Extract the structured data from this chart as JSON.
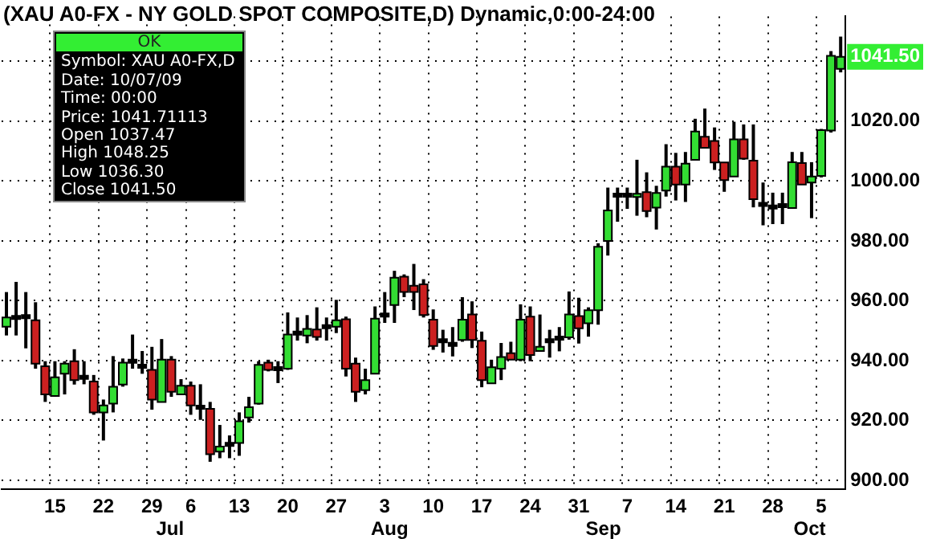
{
  "chart_data": {
    "type": "candlestick",
    "title": "(XAU A0-FX - NY GOLD SPOT COMPOSITE,D) Dynamic,0:00-24:00",
    "categories": [
      null,
      null,
      null,
      null,
      null,
      "15",
      null,
      null,
      null,
      null,
      "22",
      null,
      null,
      null,
      null,
      "29",
      null,
      null,
      null,
      "6",
      null,
      null,
      null,
      null,
      "13",
      null,
      null,
      null,
      null,
      "20",
      null,
      null,
      null,
      null,
      "27",
      null,
      null,
      null,
      null,
      "3",
      null,
      null,
      null,
      null,
      "10",
      null,
      null,
      null,
      null,
      "17",
      null,
      null,
      null,
      null,
      "24",
      null,
      null,
      null,
      null,
      "31",
      null,
      null,
      null,
      null,
      "7",
      null,
      null,
      null,
      null,
      "14",
      null,
      null,
      null,
      null,
      "21",
      null,
      null,
      null,
      null,
      "28",
      null,
      null,
      null,
      null,
      "5",
      null,
      null
    ],
    "ohlc": [
      [
        951.3,
        962.9,
        948.4,
        954.4
      ],
      [
        954.4,
        966.3,
        948.4,
        954.4
      ],
      [
        954.7,
        962.9,
        944.1,
        954.7
      ],
      [
        953.5,
        959.5,
        937.3,
        939.0
      ],
      [
        938.1,
        939.8,
        926.2,
        928.7
      ],
      [
        928.2,
        939.8,
        927.9,
        934.4
      ],
      [
        935.6,
        939.8,
        928.7,
        939.0
      ],
      [
        939.8,
        943.8,
        932.0,
        933.5
      ],
      [
        934.4,
        939.8,
        932.1,
        934.4
      ],
      [
        933.0,
        935.2,
        921.9,
        922.7
      ],
      [
        922.7,
        927.0,
        913.3,
        925.0
      ],
      [
        925.6,
        941.5,
        922.7,
        931.3
      ],
      [
        932.0,
        940.7,
        931.3,
        939.3
      ],
      [
        939.8,
        948.7,
        937.3,
        939.8
      ],
      [
        938.1,
        943.2,
        935.6,
        938.1
      ],
      [
        936.9,
        944.6,
        923.6,
        927.0
      ],
      [
        926.2,
        947.2,
        926.2,
        940.3
      ],
      [
        940.3,
        941.5,
        927.9,
        929.6
      ],
      [
        928.7,
        933.8,
        928.7,
        931.6
      ],
      [
        931.6,
        933.0,
        921.9,
        925.0
      ],
      [
        924.4,
        932.1,
        920.2,
        924.4
      ],
      [
        923.9,
        926.2,
        906.2,
        908.7
      ],
      [
        909.6,
        918.5,
        907.4,
        911.3
      ],
      [
        912.0,
        915.0,
        907.4,
        912.0
      ],
      [
        912.5,
        922.7,
        908.2,
        919.7
      ],
      [
        921.0,
        927.9,
        919.3,
        924.4
      ],
      [
        925.6,
        939.8,
        925.3,
        938.6
      ],
      [
        939.3,
        940.3,
        936.4,
        936.9
      ],
      [
        937.3,
        939.8,
        932.5,
        937.3
      ],
      [
        937.3,
        956.1,
        936.9,
        948.7
      ],
      [
        949.2,
        954.4,
        946.7,
        949.2
      ],
      [
        948.4,
        955.2,
        945.8,
        950.6
      ],
      [
        950.4,
        957.8,
        946.7,
        947.9
      ],
      [
        951.3,
        954.4,
        946.7,
        951.3
      ],
      [
        951.3,
        960.3,
        949.2,
        953.5
      ],
      [
        953.8,
        954.7,
        934.7,
        937.3
      ],
      [
        939.0,
        941.0,
        926.2,
        929.6
      ],
      [
        930.1,
        937.3,
        928.7,
        933.5
      ],
      [
        935.6,
        958.1,
        935.6,
        954.0
      ],
      [
        955.2,
        962.9,
        952.6,
        955.2
      ],
      [
        958.6,
        970.0,
        952.6,
        967.7
      ],
      [
        968.0,
        968.8,
        961.2,
        962.9
      ],
      [
        965.0,
        972.3,
        956.9,
        962.9
      ],
      [
        965.5,
        967.2,
        954.4,
        955.2
      ],
      [
        953.7,
        957.1,
        943.6,
        944.9
      ],
      [
        946.6,
        950.3,
        942.7,
        946.6
      ],
      [
        945.4,
        951.2,
        941.4,
        945.4
      ],
      [
        946.9,
        961.2,
        946.3,
        953.7
      ],
      [
        955.4,
        959.8,
        944.2,
        946.9
      ],
      [
        946.6,
        949.7,
        931.1,
        933.5
      ],
      [
        932.4,
        940.3,
        932.4,
        937.8
      ],
      [
        937.3,
        945.9,
        933.5,
        941.2
      ],
      [
        942.5,
        946.3,
        940.3,
        940.3
      ],
      [
        940.3,
        958.8,
        939.8,
        953.7
      ],
      [
        954.7,
        958.1,
        939.8,
        941.9
      ],
      [
        943.2,
        955.4,
        943.2,
        944.6
      ],
      [
        946.6,
        950.3,
        941.0,
        946.6
      ],
      [
        947.5,
        951.2,
        943.1,
        947.5
      ],
      [
        947.8,
        963.1,
        947.0,
        955.4
      ],
      [
        954.9,
        961.0,
        945.7,
        950.8
      ],
      [
        952.5,
        957.8,
        948.0,
        956.8
      ],
      [
        956.8,
        979.2,
        952.0,
        978.0
      ],
      [
        980.0,
        997.8,
        975.1,
        990.2
      ],
      [
        995.3,
        997.8,
        986.4,
        995.3
      ],
      [
        995.3,
        997.8,
        990.7,
        995.3
      ],
      [
        994.4,
        1007.1,
        988.4,
        995.2
      ],
      [
        996.3,
        1002.9,
        987.9,
        990.0
      ],
      [
        991.1,
        998.4,
        983.8,
        996.0
      ],
      [
        996.8,
        1012.3,
        994.8,
        1004.8
      ],
      [
        1004.8,
        1009.4,
        993.5,
        998.8
      ],
      [
        998.8,
        1009.7,
        993.0,
        1005.8
      ],
      [
        1007.1,
        1020.8,
        1007.1,
        1016.5
      ],
      [
        1014.8,
        1024.2,
        1011.1,
        1011.1
      ],
      [
        1013.4,
        1017.9,
        1003.7,
        1006.2
      ],
      [
        1006.2,
        1006.2,
        996.4,
        1000.3
      ],
      [
        1001.5,
        1019.8,
        1001.5,
        1013.9
      ],
      [
        1013.9,
        1018.9,
        1007.1,
        1007.5
      ],
      [
        1006.8,
        1018.9,
        991.2,
        993.9
      ],
      [
        992.2,
        999.5,
        985.2,
        992.2
      ],
      [
        991.3,
        996.1,
        985.6,
        991.3
      ],
      [
        991.8,
        996.1,
        985.6,
        991.8
      ],
      [
        991.0,
        1009.7,
        991.0,
        1006.3
      ],
      [
        1006.0,
        1009.7,
        998.8,
        998.8
      ],
      [
        999.5,
        1006.3,
        987.6,
        1001.5
      ],
      [
        1001.7,
        1017.4,
        1001.2,
        1017.0
      ],
      [
        1016.9,
        1043.4,
        1016.2,
        1041.8
      ],
      [
        1037.47,
        1048.25,
        1036.3,
        1041.5
      ]
    ],
    "colors": [
      "#33dd33",
      "#000000",
      "#000000",
      "#cc2020",
      "#cc2020",
      "#33dd33",
      "#33dd33",
      "#cc2020",
      "#000000",
      "#cc2020",
      "#33dd33",
      "#33dd33",
      "#33dd33",
      "#000000",
      "#000000",
      "#cc2020",
      "#33dd33",
      "#cc2020",
      "#33dd33",
      "#cc2020",
      "#000000",
      "#cc2020",
      "#33dd33",
      "#000000",
      "#33dd33",
      "#33dd33",
      "#33dd33",
      "#cc2020",
      "#000000",
      "#33dd33",
      "#000000",
      "#33dd33",
      "#cc2020",
      "#000000",
      "#33dd33",
      "#cc2020",
      "#cc2020",
      "#33dd33",
      "#33dd33",
      "#000000",
      "#33dd33",
      "#cc2020",
      "#cc2020",
      "#cc2020",
      "#cc2020",
      "#000000",
      "#000000",
      "#33dd33",
      "#cc2020",
      "#cc2020",
      "#33dd33",
      "#33dd33",
      "#cc2020",
      "#33dd33",
      "#cc2020",
      "#33dd33",
      "#000000",
      "#000000",
      "#33dd33",
      "#cc2020",
      "#33dd33",
      "#33dd33",
      "#33dd33",
      "#000000",
      "#000000",
      "#33dd33",
      "#cc2020",
      "#33dd33",
      "#33dd33",
      "#cc2020",
      "#33dd33",
      "#33dd33",
      "#cc2020",
      "#cc2020",
      "#cc2020",
      "#33dd33",
      "#cc2020",
      "#cc2020",
      "#000000",
      "#000000",
      "#000000",
      "#33dd33",
      "#cc2020",
      "#33dd33",
      "#33dd33",
      "#33dd33",
      "#33dd33"
    ],
    "ylim": [
      897,
      1055
    ],
    "yticks": [
      {
        "value": 900,
        "label": "900.00"
      },
      {
        "value": 920,
        "label": "920.00"
      },
      {
        "value": 940,
        "label": "940.00"
      },
      {
        "value": 960,
        "label": "960.00"
      },
      {
        "value": 980,
        "label": "980.00"
      },
      {
        "value": 1000,
        "label": "1000.00"
      },
      {
        "value": 1020,
        "label": "1020.00"
      },
      {
        "value": 1040,
        "label": null
      }
    ],
    "grid": true,
    "annotations": [
      "1041.50",
      "OK",
      "Symbol: XAU A0-FX,D",
      "Date: 10/07/09",
      "Time: 00:00",
      "Price: 1041.71113",
      "Open 1037.47",
      "High 1048.25",
      "Low 1036.30",
      "Close 1041.50",
      "Jul",
      "Aug",
      "Sep",
      "Oct"
    ]
  }
}
